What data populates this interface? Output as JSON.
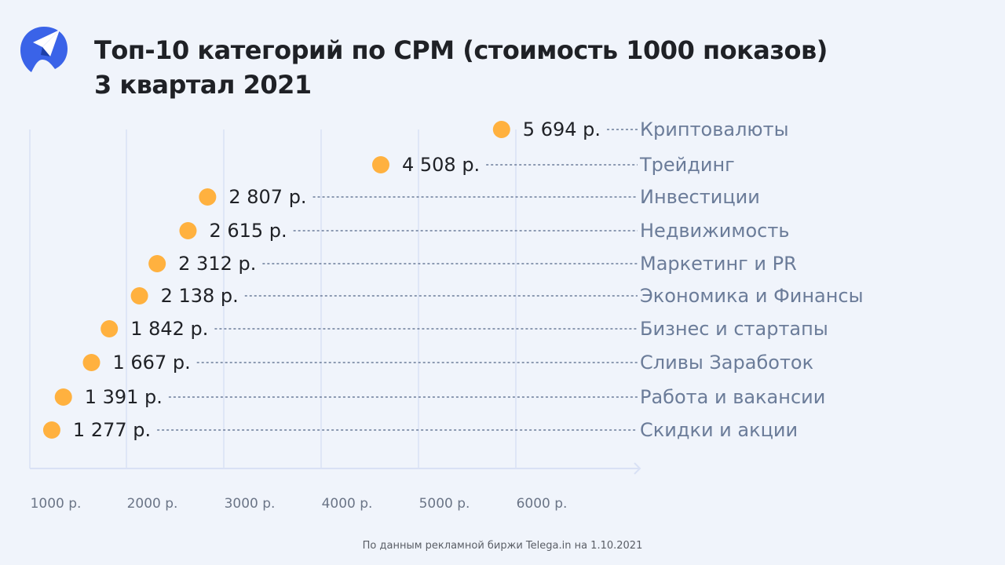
{
  "header": {
    "title_line1": "Топ-10 категорий по CPM (стоимость 1000 показов)",
    "title_line2": "3 квартал 2021",
    "logo_icon": "paper-plane-logo-icon"
  },
  "footer": {
    "source": "По данным рекламной биржи Telega.in на 1.10.2021"
  },
  "colors": {
    "background": "#f0f4fb",
    "dot": "#ffb13f",
    "grid": "#d9e1f5",
    "value_text": "#1f2126",
    "category_text": "#6b7c99",
    "logo": "#3a63e8"
  },
  "chart_data": {
    "type": "scatter",
    "title": "Топ-10 категорий по CPM (стоимость 1000 показов) 3 квартал 2021",
    "xlabel": "",
    "ylabel": "",
    "x_ticks": [
      "1000 р.",
      "2000 р.",
      "3000 р.",
      "4000 р.",
      "5000 р.",
      "6000 р."
    ],
    "xlim": [
      1000,
      6000
    ],
    "grid": true,
    "categories": [
      "Криптовалюты",
      "Трейдинг",
      "Инвестиции",
      "Недвижимость",
      "Маркетинг и PR",
      "Экономика и Финансы",
      "Бизнес и стартапы",
      "Сливы Заработок",
      "Работа и вакансии",
      "Скидки и акции"
    ],
    "values": [
      5694,
      4508,
      2807,
      2615,
      2312,
      2138,
      1842,
      1667,
      1391,
      1277
    ],
    "value_labels": [
      "5 694 р.",
      "4 508 р.",
      "2 807 р.",
      "2 615 р.",
      "2 312 р.",
      "2 138 р.",
      "1 842 р.",
      "1 667 р.",
      "1 391 р.",
      "1 277 р."
    ],
    "unit": "р."
  }
}
